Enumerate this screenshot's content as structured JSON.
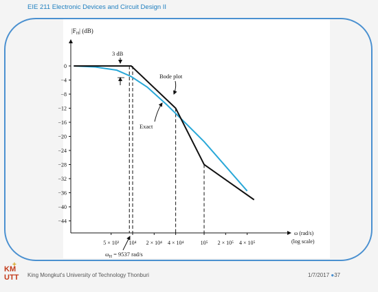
{
  "slide": {
    "header": "EIE 211 Electronic Devices and Circuit Design II",
    "footer_org": "King Mongkut's University of Technology Thonburi",
    "footer_date": "1/7/2017",
    "footer_bullet": "●",
    "page_number": "37",
    "logo_text_top": "KM",
    "logo_text_bottom": "UTT",
    "colors": {
      "accent": "#4a90d0",
      "header": "#1f7fbf",
      "exact_curve": "#29a8d8",
      "bode_line": "#111111"
    }
  },
  "chart_data": {
    "type": "line",
    "ylabel": "|F_H|   (dB)",
    "xlabel": "ω (rad/s)",
    "xlabel_note": "(log scale)",
    "x_scale": "log",
    "ylim": [
      -46,
      6
    ],
    "y_ticks": [
      0,
      -4,
      -8,
      -12,
      -16,
      -20,
      -24,
      -28,
      -32,
      -36,
      -40,
      -44
    ],
    "y_tick_labels": [
      "0",
      "−4",
      "−8",
      "−12",
      "−16",
      "−20",
      "−24",
      "−28",
      "−32",
      "−36",
      "−40",
      "−44"
    ],
    "x_ticks": [
      5000,
      10000,
      20000,
      40000,
      100000,
      200000,
      400000
    ],
    "x_tick_labels": [
      "5 × 10³",
      "10⁴",
      "2 × 10⁴",
      "4 × 10⁴",
      "10⁵",
      "2 × 10⁵",
      "4 × 10⁵"
    ],
    "series": [
      {
        "name": "Bode plot",
        "x": [
          1500,
          9537,
          40000,
          100000,
          500000
        ],
        "y": [
          0,
          0,
          -12,
          -28,
          -38
        ]
      },
      {
        "name": "Exact",
        "x": [
          1500,
          3000,
          6000,
          9537,
          16000,
          30000,
          60000,
          100000,
          200000,
          400000
        ],
        "y": [
          0,
          -0.3,
          -1.2,
          -3,
          -6,
          -11,
          -17,
          -21.5,
          -28.5,
          -35.5
        ]
      }
    ],
    "annotations": {
      "three_db": "3 dB",
      "bode_label": "Bode plot",
      "exact_label": "Exact",
      "omega_h": "ω_H = 9537 rad/s"
    },
    "dashed_markers_x": [
      9000,
      10000,
      40000,
      100000
    ]
  }
}
